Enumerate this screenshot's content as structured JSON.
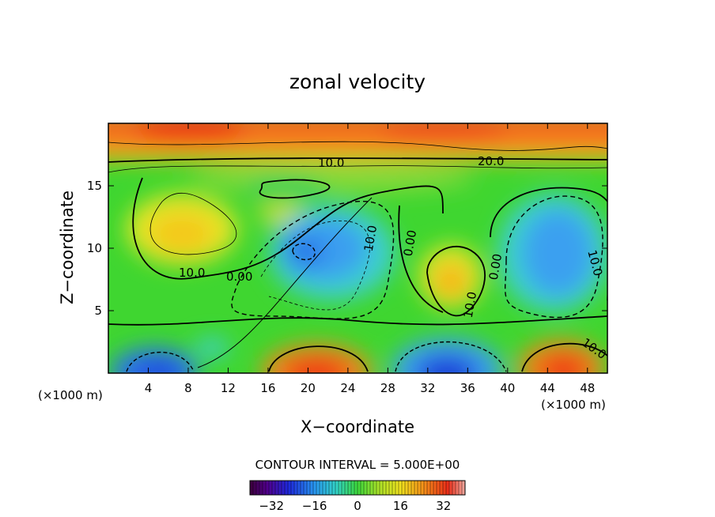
{
  "chart_data": {
    "type": "heatmap",
    "title": "zonal velocity",
    "xlabel": "X−coordinate",
    "ylabel": "Z−coordinate",
    "x_unit_left": "(×1000 m)",
    "x_unit_right": "(×1000 m)",
    "xlim": [
      0,
      50
    ],
    "ylim": [
      0,
      20
    ],
    "xticks": [
      "4",
      "8",
      "12",
      "16",
      "20",
      "24",
      "28",
      "32",
      "36",
      "40",
      "44",
      "48"
    ],
    "yticks": [
      "5",
      "10",
      "15"
    ],
    "contour_interval_text": "CONTOUR INTERVAL = 5.000E+00",
    "contour_labels": [
      "10.0",
      "20.0",
      "10.0",
      "0.00",
      "10.0",
      "0.00",
      "10.0",
      "0.00",
      "10.0",
      "10.0"
    ],
    "colorbar": {
      "range": [
        -40,
        40
      ],
      "ticks": [
        "−32",
        "−16",
        "0",
        "16",
        "32"
      ]
    },
    "grid": false
  }
}
